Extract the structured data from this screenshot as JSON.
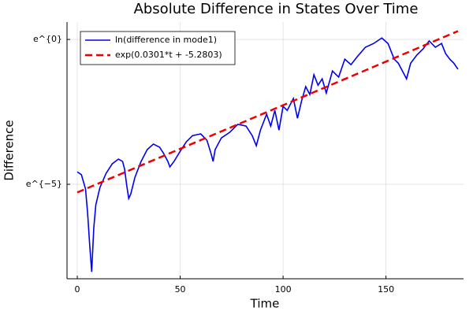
{
  "chart_data": {
    "type": "line",
    "title": "Absolute Difference in States Over Time",
    "x_label": "Time",
    "y_label": "Difference",
    "xlim": [
      -5.0,
      187.7
    ],
    "xticks": [
      0,
      50,
      100,
      150
    ],
    "ylim": [
      -8.26,
      0.6
    ],
    "yticks": [
      {
        "value": -5,
        "label": "e^{−5}"
      },
      {
        "value": 0,
        "label": "e^{0}"
      }
    ],
    "grid": true,
    "legend": "top-left",
    "series": [
      {
        "name": "ln(difference in mode1)",
        "color": "#0000ee",
        "line_style": "solid",
        "x": [
          0,
          2,
          4,
          5,
          6,
          7,
          8,
          9,
          11,
          14,
          17,
          20,
          22,
          23,
          24,
          25,
          26,
          28,
          31,
          34,
          37,
          40,
          42,
          44,
          45,
          47,
          50,
          53,
          56,
          60,
          63,
          65,
          66,
          67,
          70,
          74,
          78,
          82,
          85,
          87,
          89,
          92,
          94,
          96,
          98,
          100,
          102,
          105,
          107,
          109,
          111,
          113,
          115,
          117,
          119,
          121,
          124,
          127,
          130,
          133,
          136,
          140,
          144,
          148,
          151,
          154,
          156,
          158,
          160,
          162,
          165,
          168,
          171,
          174,
          177,
          179,
          181,
          183,
          185
        ],
        "values": [
          -4.57,
          -4.67,
          -5.16,
          -5.98,
          -7.07,
          -8.02,
          -6.52,
          -5.71,
          -5.11,
          -4.62,
          -4.29,
          -4.13,
          -4.21,
          -4.48,
          -5.03,
          -5.49,
          -5.33,
          -4.76,
          -4.21,
          -3.8,
          -3.61,
          -3.72,
          -3.94,
          -4.21,
          -4.4,
          -4.21,
          -3.86,
          -3.53,
          -3.32,
          -3.26,
          -3.48,
          -3.94,
          -4.21,
          -3.8,
          -3.4,
          -3.21,
          -2.93,
          -2.99,
          -3.32,
          -3.67,
          -3.13,
          -2.58,
          -2.99,
          -2.45,
          -3.13,
          -2.31,
          -2.45,
          -2.04,
          -2.72,
          -2.12,
          -1.63,
          -1.9,
          -1.22,
          -1.58,
          -1.36,
          -1.85,
          -1.09,
          -1.3,
          -0.68,
          -0.87,
          -0.6,
          -0.27,
          -0.14,
          0.05,
          -0.14,
          -0.68,
          -0.82,
          -1.09,
          -1.36,
          -0.82,
          -0.54,
          -0.33,
          -0.05,
          -0.27,
          -0.14,
          -0.49,
          -0.68,
          -0.82,
          -1.03
        ]
      },
      {
        "name": "exp(0.0301*t + -5.2803)",
        "color": "#ee0000",
        "line_style": "dashed",
        "x": [
          0,
          185
        ],
        "values": [
          -5.2803,
          0.2882
        ]
      }
    ]
  }
}
